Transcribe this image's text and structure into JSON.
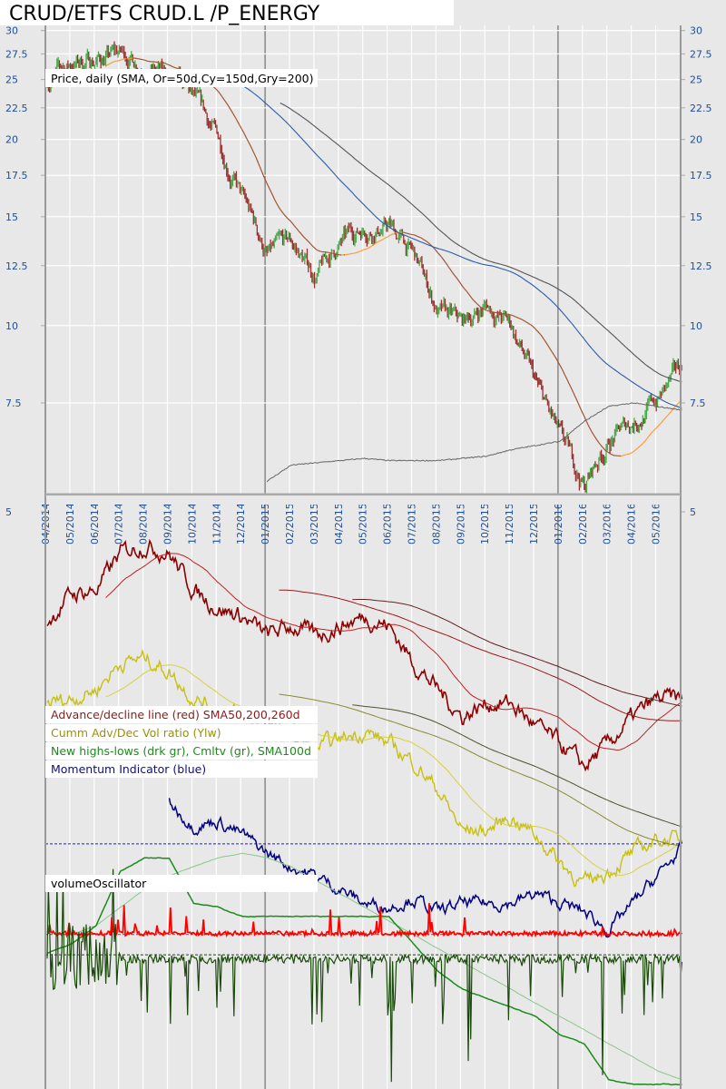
{
  "title": "CRUD/ETFS CRUD.L /P_ENERGY",
  "chart_data": [
    {
      "type": "line",
      "panel": "price",
      "legend": "Price, daily (SMA, Or=50d,Cy=150d,Gry=200)",
      "yscale": "log",
      "ylim": [
        5,
        30
      ],
      "yticks": [
        "30",
        "27.5",
        "25",
        "22.5",
        "20",
        "17.5",
        "15",
        "12.5",
        "10",
        "7.5",
        "5"
      ],
      "ytick_values": [
        30,
        27.5,
        25,
        22.5,
        20,
        17.5,
        15,
        12.5,
        10,
        7.5,
        5
      ],
      "months": [
        "04/2014",
        "05/2014",
        "06/2014",
        "07/2014",
        "08/2014",
        "09/2014",
        "10/2014",
        "11/2014",
        "12/2014",
        "01/2015",
        "02/2015",
        "03/2015",
        "04/2015",
        "05/2015",
        "06/2015",
        "07/2015",
        "08/2015",
        "09/2015",
        "10/2015",
        "11/2015",
        "12/2015",
        "01/2016",
        "02/2016",
        "03/2016",
        "04/2016",
        "05/2016"
      ],
      "grid": true,
      "price_monthly": [
        25,
        26.5,
        27,
        27.5,
        26.5,
        25,
        23,
        20,
        16,
        13,
        13.5,
        12,
        13.5,
        14.5,
        14.5,
        13,
        10.5,
        10,
        10.8,
        10,
        8,
        6.5,
        5.5,
        6.5,
        7,
        7.6,
        8.5
      ],
      "sma_periods_days": [
        50,
        150,
        200
      ],
      "sma_colors": {
        "50_rising": "#ff9933",
        "50_falling": "#a0522d",
        "150": "#2a5caa",
        "200": "#555555"
      },
      "lower_line_monthly": [
        null,
        null,
        null,
        null,
        null,
        null,
        null,
        null,
        null,
        5.6,
        5.95,
        6.0,
        6.05,
        6.1,
        6.05,
        6.05,
        6.05,
        6.1,
        6.15,
        6.3,
        6.4,
        6.5,
        7.0,
        7.4,
        7.5,
        7.4,
        7.3
      ],
      "candle_colors": {
        "up": "#2e9e2e",
        "down": "#8b1010"
      }
    },
    {
      "type": "line",
      "panel": "indicators",
      "note_units": "relative level, no axis printed",
      "series": [
        {
          "name": "Advance/decline line (red) SMA50,200,260d",
          "color": "#8b0000",
          "values": [
            80.5,
            85.2,
            85.9,
            92.2,
            93.8,
            92.2,
            85.9,
            82.8,
            81.3,
            78.1,
            79.7,
            78.1,
            79.7,
            81.3,
            79.7,
            73.4,
            68.8,
            64.1,
            66.4,
            66.4,
            62.5,
            59.4,
            55.5,
            59.4,
            64.1,
            67.2,
            67.2
          ]
        },
        {
          "name": "Cumm Adv/Dec Vol ratio (Ylw)",
          "color": "#c8c010",
          "values": [
            66.4,
            67.2,
            68.8,
            73.4,
            74.2,
            71.9,
            67.2,
            65.6,
            64.1,
            62.5,
            60.9,
            58.6,
            60.2,
            61.7,
            59.4,
            56.3,
            51.6,
            44.5,
            44.5,
            46.9,
            43.8,
            39.1,
            35.2,
            37.5,
            40.6,
            43.0,
            43.0
          ]
        },
        {
          "name": "Momentum Indicator (blue)",
          "color": "#000080",
          "values": [
            null,
            null,
            null,
            null,
            null,
            49.2,
            45.3,
            46.1,
            43.8,
            40.6,
            38.3,
            36.7,
            34.4,
            32.0,
            31.3,
            32.8,
            30.5,
            32.0,
            32.0,
            32.0,
            33.6,
            32.0,
            30.5,
            27.3,
            32.0,
            36.7,
            41.4
          ]
        },
        {
          "name": "New highs-lows (drk gr), Cmltv (gr), SMA100d",
          "color": "#1a8c1a",
          "values": [
            23.4,
            25.0,
            28.1,
            37.5,
            39.8,
            39.8,
            32.0,
            31.3,
            29.7,
            29.7,
            29.7,
            29.7,
            29.7,
            29.7,
            29.7,
            25.0,
            20.3,
            17.2,
            15.6,
            14.1,
            12.5,
            9.4,
            7.8,
            1.6,
            0.8,
            0.8,
            0.8
          ]
        },
        {
          "name": "SMA100d",
          "color": "#88c888",
          "values": [
            null,
            26.6,
            28.1,
            31.3,
            34.4,
            36.7,
            38.3,
            39.8,
            40.6,
            39.8,
            38.3,
            35.9,
            33.6,
            31.3,
            28.9,
            26.6,
            24.2,
            21.9,
            19.5,
            17.2,
            14.8,
            12.5,
            10.2,
            7.8,
            5.5,
            3.1,
            1.6
          ]
        }
      ],
      "volume_oscillator": {
        "name": "volumeOscillator",
        "color": "#ff0000",
        "baseline": 26.6
      },
      "new_highs_lows_daily": {
        "color": "#1a4a0a",
        "baseline": 23.1
      },
      "reference_lines": [
        {
          "level": 42.2,
          "color": "#2020c0"
        },
        {
          "level": 26.6,
          "color": "#c03030"
        },
        {
          "level": 23.1,
          "color": "#204020"
        }
      ]
    }
  ],
  "legends": {
    "price": "Price, daily (SMA, Or=50d,Cy=150d,Gry=200)",
    "ad": "Advance/decline line (red) SMA50,200,260d",
    "vol": "Cumm Adv/Dec Vol ratio (Ylw)",
    "hl": "New highs-lows (drk gr), Cmltv (gr), SMA100d",
    "mom": "Momentum Indicator (blue)",
    "vo": "volumeOscillator"
  },
  "legend_colors": {
    "ad": "#8b1a1a",
    "vol": "#9a9010",
    "hl": "#1a8c1a",
    "mom": "#10107a",
    "vo": "#000000"
  }
}
